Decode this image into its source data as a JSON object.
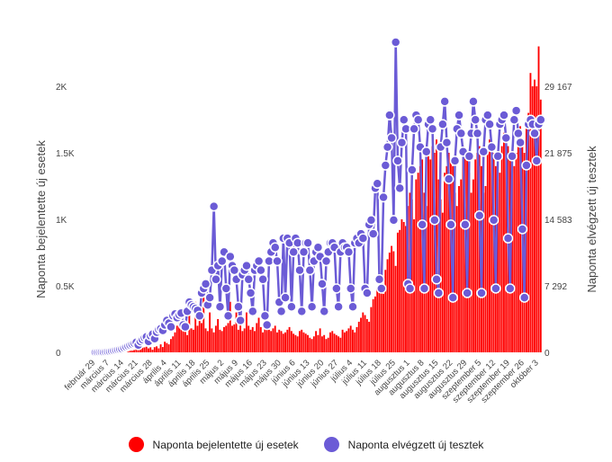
{
  "chart_data": {
    "type": "bar+line",
    "title": "",
    "ylabel_left": "Naponta bejelentette új esetek",
    "ylabel_right": "Naponta elvégzett új tesztek",
    "left_ticks": [
      "0",
      "0.5K",
      "1K",
      "1.5K",
      "2K"
    ],
    "left_tick_values": [
      0,
      500,
      1000,
      1500,
      2000
    ],
    "right_ticks": [
      "0",
      "7 292",
      "14 583",
      "21 875",
      "29 167"
    ],
    "right_tick_values": [
      0,
      7292,
      14583,
      21875,
      29167
    ],
    "start_date": "február 29",
    "x_tick_labels": [
      "február 29",
      "március 7",
      "március 14",
      "március 21",
      "március 28",
      "április 4",
      "április 11",
      "április 18",
      "április 25",
      "május 2",
      "május 9",
      "május 16",
      "május 23",
      "május 30",
      "június 6",
      "június 13",
      "június 20",
      "június 27",
      "július 4",
      "július 11",
      "július 18",
      "július 25",
      "augusztus 1",
      "augusztus 8",
      "augusztus 15",
      "augusztus 22",
      "augusztus 29",
      "szeptember 5",
      "szeptember 12",
      "szeptember 19",
      "szeptember 26",
      "október 3"
    ],
    "colors": {
      "cases": "#ff0000",
      "tests": "#6b5bd6"
    },
    "legend_placement": "bottom",
    "grid": false,
    "series": [
      {
        "name": "Naponta bejelentette új esetek",
        "type": "bar",
        "axis": "left",
        "values": [
          0,
          0,
          0,
          0,
          1,
          0,
          2,
          0,
          3,
          2,
          3,
          6,
          4,
          3,
          5,
          8,
          11,
          14,
          13,
          17,
          23,
          28,
          30,
          35,
          37,
          42,
          30,
          38,
          20,
          39,
          45,
          30,
          60,
          40,
          80,
          70,
          60,
          100,
          120,
          150,
          200,
          220,
          250,
          190,
          160,
          130,
          390,
          180,
          170,
          380,
          200,
          350,
          220,
          420,
          180,
          160,
          300,
          180,
          150,
          200,
          250,
          170,
          160,
          190,
          200,
          220,
          380,
          200,
          210,
          300,
          170,
          250,
          160,
          180,
          300,
          200,
          170,
          190,
          160,
          220,
          260,
          190,
          150,
          180,
          230,
          170,
          160,
          180,
          200,
          150,
          170,
          160,
          140,
          150,
          170,
          190,
          160,
          140,
          130,
          120,
          160,
          170,
          150,
          140,
          130,
          110,
          100,
          120,
          160,
          130,
          180,
          120,
          130,
          100,
          110,
          150,
          160,
          140,
          130,
          120,
          110,
          170,
          150,
          160,
          180,
          200,
          170,
          150,
          190,
          230,
          260,
          300,
          280,
          250,
          230,
          340,
          400,
          420,
          480,
          520,
          460,
          440,
          620,
          700,
          750,
          800,
          760,
          650,
          900,
          920,
          1000,
          980,
          950,
          1100,
          1200,
          1150,
          1000,
          1300,
          1350,
          1400,
          1450,
          1200,
          1100,
          1500,
          1450,
          1550,
          1500,
          1600,
          1300,
          1150,
          1050,
          1350,
          1400,
          1500,
          1450,
          1400,
          1200,
          1100,
          1250,
          1300,
          1550,
          1500,
          1450,
          1350,
          1200,
          1300,
          1450,
          1500,
          1550,
          1400,
          1200,
          1250,
          1500,
          1600,
          1550,
          1500,
          1400,
          1300,
          1350,
          1550,
          1650,
          1600,
          1550,
          1450,
          1350,
          1400,
          1500,
          1650,
          1700,
          1600,
          1500,
          1750,
          1800,
          2100,
          2000,
          2050,
          2000,
          2300,
          1900
        ]
      },
      {
        "name": "Naponta elvégzett új tesztek",
        "type": "line",
        "axis": "right",
        "values": [
          0,
          0,
          10,
          20,
          30,
          50,
          80,
          100,
          150,
          200,
          250,
          300,
          350,
          400,
          500,
          600,
          700,
          800,
          900,
          1000,
          1100,
          800,
          1200,
          1400,
          1600,
          1700,
          1200,
          1800,
          2000,
          1500,
          2200,
          2500,
          2600,
          2400,
          3000,
          3500,
          3200,
          2800,
          4000,
          4200,
          3800,
          4100,
          4300,
          3000,
          2800,
          4500,
          5500,
          5200,
          5000,
          4800,
          4600,
          4000,
          6500,
          7000,
          7500,
          5200,
          6000,
          9000,
          16000,
          8000,
          9500,
          5000,
          10000,
          11000,
          7000,
          4000,
          10500,
          9500,
          9000,
          8000,
          5000,
          3500,
          8500,
          9000,
          9500,
          8000,
          6500,
          4500,
          9000,
          9500,
          10000,
          9000,
          8000,
          4000,
          3000,
          10000,
          11000,
          12000,
          11500,
          10000,
          5500,
          4500,
          12500,
          6000,
          12500,
          12000,
          5000,
          11000,
          12500,
          12000,
          9000,
          4500,
          11000,
          12000,
          12000,
          9000,
          5000,
          10000,
          11000,
          11500,
          10500,
          7500,
          4500,
          10000,
          11000,
          12000,
          12000,
          11500,
          7000,
          5000,
          11000,
          12000,
          11500,
          11500,
          11000,
          7000,
          5000,
          12000,
          12500,
          12000,
          13000,
          12500,
          7000,
          6500,
          14000,
          14500,
          13000,
          18000,
          18500,
          8000,
          7000,
          17000,
          20500,
          22500,
          26000,
          23500,
          14500,
          34000,
          21000,
          18000,
          23000,
          25500,
          24500,
          7500,
          7000,
          20000,
          24500,
          26000,
          25500,
          22500,
          14000,
          7000,
          22000,
          25000,
          25500,
          24500,
          14500,
          8000,
          6500,
          22500,
          25000,
          27500,
          23000,
          19000,
          14000,
          6000,
          21000,
          24500,
          26000,
          24000,
          22000,
          14000,
          6500,
          21500,
          24000,
          27500,
          25500,
          24000,
          15000,
          6500,
          22000,
          25500,
          26000,
          25000,
          22500,
          14500,
          7000,
          21500,
          25000,
          25500,
          26000,
          23500,
          12500,
          7000,
          21500,
          25500,
          26500,
          24000,
          23000,
          13500,
          6000,
          20500,
          25000,
          25500,
          25000,
          24000,
          21000,
          25000,
          25500
        ]
      }
    ]
  },
  "legend": {
    "cases_label": "Naponta bejelentette új esetek",
    "tests_label": "Naponta elvégzett új tesztek"
  }
}
